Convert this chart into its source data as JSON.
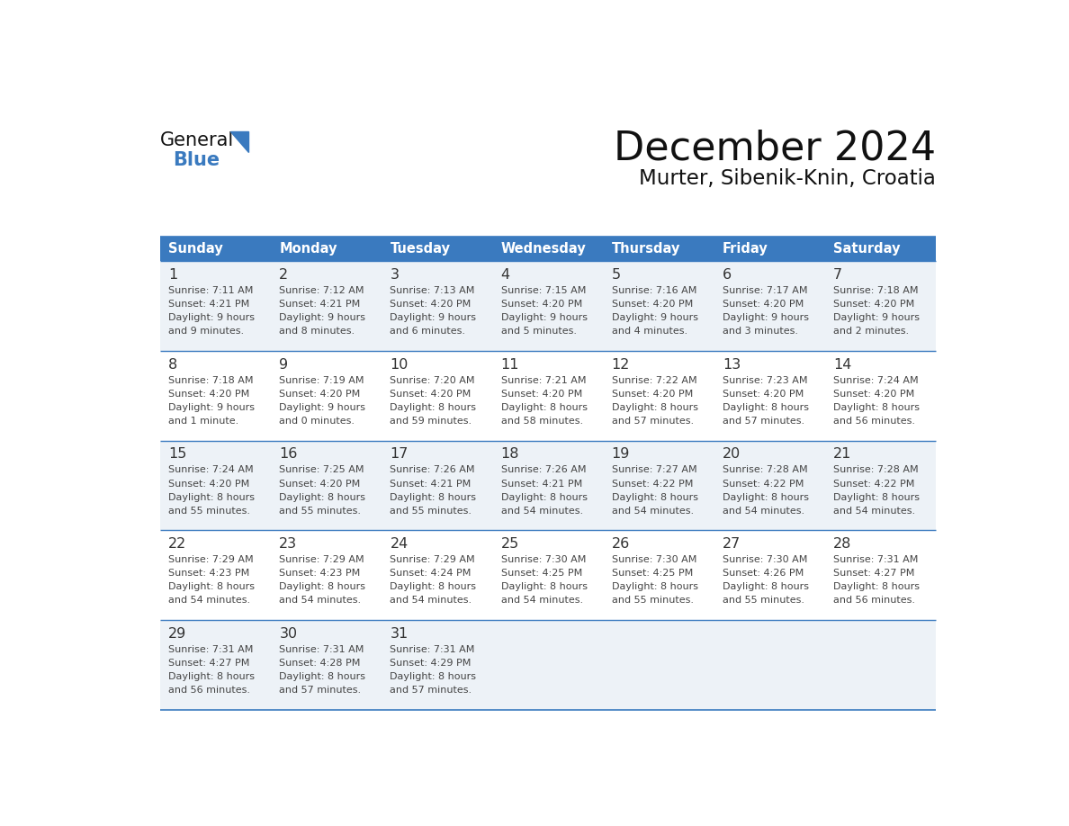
{
  "title": "December 2024",
  "subtitle": "Murter, Sibenik-Knin, Croatia",
  "days_of_week": [
    "Sunday",
    "Monday",
    "Tuesday",
    "Wednesday",
    "Thursday",
    "Friday",
    "Saturday"
  ],
  "header_bg": "#3a7abf",
  "header_text": "#ffffff",
  "odd_row_bg": "#edf2f7",
  "even_row_bg": "#ffffff",
  "grid_line_color": "#3a7abf",
  "day_num_color": "#333333",
  "cell_text_color": "#444444",
  "title_color": "#111111",
  "subtitle_color": "#111111",
  "logo_general_color": "#111111",
  "logo_blue_color": "#3a7abf",
  "weeks": [
    [
      {
        "day": 1,
        "sunrise": "7:11 AM",
        "sunset": "4:21 PM",
        "daylight": "9 hours\nand 9 minutes."
      },
      {
        "day": 2,
        "sunrise": "7:12 AM",
        "sunset": "4:21 PM",
        "daylight": "9 hours\nand 8 minutes."
      },
      {
        "day": 3,
        "sunrise": "7:13 AM",
        "sunset": "4:20 PM",
        "daylight": "9 hours\nand 6 minutes."
      },
      {
        "day": 4,
        "sunrise": "7:15 AM",
        "sunset": "4:20 PM",
        "daylight": "9 hours\nand 5 minutes."
      },
      {
        "day": 5,
        "sunrise": "7:16 AM",
        "sunset": "4:20 PM",
        "daylight": "9 hours\nand 4 minutes."
      },
      {
        "day": 6,
        "sunrise": "7:17 AM",
        "sunset": "4:20 PM",
        "daylight": "9 hours\nand 3 minutes."
      },
      {
        "day": 7,
        "sunrise": "7:18 AM",
        "sunset": "4:20 PM",
        "daylight": "9 hours\nand 2 minutes."
      }
    ],
    [
      {
        "day": 8,
        "sunrise": "7:18 AM",
        "sunset": "4:20 PM",
        "daylight": "9 hours\nand 1 minute."
      },
      {
        "day": 9,
        "sunrise": "7:19 AM",
        "sunset": "4:20 PM",
        "daylight": "9 hours\nand 0 minutes."
      },
      {
        "day": 10,
        "sunrise": "7:20 AM",
        "sunset": "4:20 PM",
        "daylight": "8 hours\nand 59 minutes."
      },
      {
        "day": 11,
        "sunrise": "7:21 AM",
        "sunset": "4:20 PM",
        "daylight": "8 hours\nand 58 minutes."
      },
      {
        "day": 12,
        "sunrise": "7:22 AM",
        "sunset": "4:20 PM",
        "daylight": "8 hours\nand 57 minutes."
      },
      {
        "day": 13,
        "sunrise": "7:23 AM",
        "sunset": "4:20 PM",
        "daylight": "8 hours\nand 57 minutes."
      },
      {
        "day": 14,
        "sunrise": "7:24 AM",
        "sunset": "4:20 PM",
        "daylight": "8 hours\nand 56 minutes."
      }
    ],
    [
      {
        "day": 15,
        "sunrise": "7:24 AM",
        "sunset": "4:20 PM",
        "daylight": "8 hours\nand 55 minutes."
      },
      {
        "day": 16,
        "sunrise": "7:25 AM",
        "sunset": "4:20 PM",
        "daylight": "8 hours\nand 55 minutes."
      },
      {
        "day": 17,
        "sunrise": "7:26 AM",
        "sunset": "4:21 PM",
        "daylight": "8 hours\nand 55 minutes."
      },
      {
        "day": 18,
        "sunrise": "7:26 AM",
        "sunset": "4:21 PM",
        "daylight": "8 hours\nand 54 minutes."
      },
      {
        "day": 19,
        "sunrise": "7:27 AM",
        "sunset": "4:22 PM",
        "daylight": "8 hours\nand 54 minutes."
      },
      {
        "day": 20,
        "sunrise": "7:28 AM",
        "sunset": "4:22 PM",
        "daylight": "8 hours\nand 54 minutes."
      },
      {
        "day": 21,
        "sunrise": "7:28 AM",
        "sunset": "4:22 PM",
        "daylight": "8 hours\nand 54 minutes."
      }
    ],
    [
      {
        "day": 22,
        "sunrise": "7:29 AM",
        "sunset": "4:23 PM",
        "daylight": "8 hours\nand 54 minutes."
      },
      {
        "day": 23,
        "sunrise": "7:29 AM",
        "sunset": "4:23 PM",
        "daylight": "8 hours\nand 54 minutes."
      },
      {
        "day": 24,
        "sunrise": "7:29 AM",
        "sunset": "4:24 PM",
        "daylight": "8 hours\nand 54 minutes."
      },
      {
        "day": 25,
        "sunrise": "7:30 AM",
        "sunset": "4:25 PM",
        "daylight": "8 hours\nand 54 minutes."
      },
      {
        "day": 26,
        "sunrise": "7:30 AM",
        "sunset": "4:25 PM",
        "daylight": "8 hours\nand 55 minutes."
      },
      {
        "day": 27,
        "sunrise": "7:30 AM",
        "sunset": "4:26 PM",
        "daylight": "8 hours\nand 55 minutes."
      },
      {
        "day": 28,
        "sunrise": "7:31 AM",
        "sunset": "4:27 PM",
        "daylight": "8 hours\nand 56 minutes."
      }
    ],
    [
      {
        "day": 29,
        "sunrise": "7:31 AM",
        "sunset": "4:27 PM",
        "daylight": "8 hours\nand 56 minutes."
      },
      {
        "day": 30,
        "sunrise": "7:31 AM",
        "sunset": "4:28 PM",
        "daylight": "8 hours\nand 57 minutes."
      },
      {
        "day": 31,
        "sunrise": "7:31 AM",
        "sunset": "4:29 PM",
        "daylight": "8 hours\nand 57 minutes."
      },
      null,
      null,
      null,
      null
    ]
  ]
}
